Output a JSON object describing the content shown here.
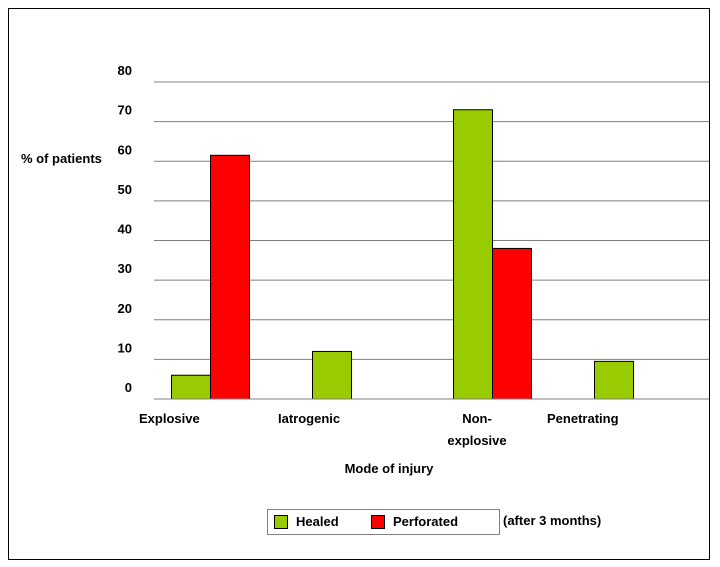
{
  "chart_data": {
    "type": "bar",
    "title": "",
    "ylabel": "% of patients",
    "xlabel": "Mode of injury",
    "ylim": [
      0,
      80
    ],
    "yticks": [
      0,
      10,
      20,
      30,
      40,
      50,
      60,
      70,
      80
    ],
    "grid": true,
    "legend_position": "bottom",
    "categories": [
      [
        "Explosive"
      ],
      [
        "Iatrogenic"
      ],
      [
        "Non-",
        "explosive"
      ],
      [
        "Penetrating"
      ]
    ],
    "series": [
      {
        "name": "Healed",
        "color": "#99cc00",
        "values": [
          6,
          12,
          73,
          9.5
        ]
      },
      {
        "name": "Perforated",
        "color": "#ff0000",
        "values": [
          61.5,
          0,
          38,
          0
        ]
      }
    ],
    "legend_note": "(after 3 months)"
  }
}
